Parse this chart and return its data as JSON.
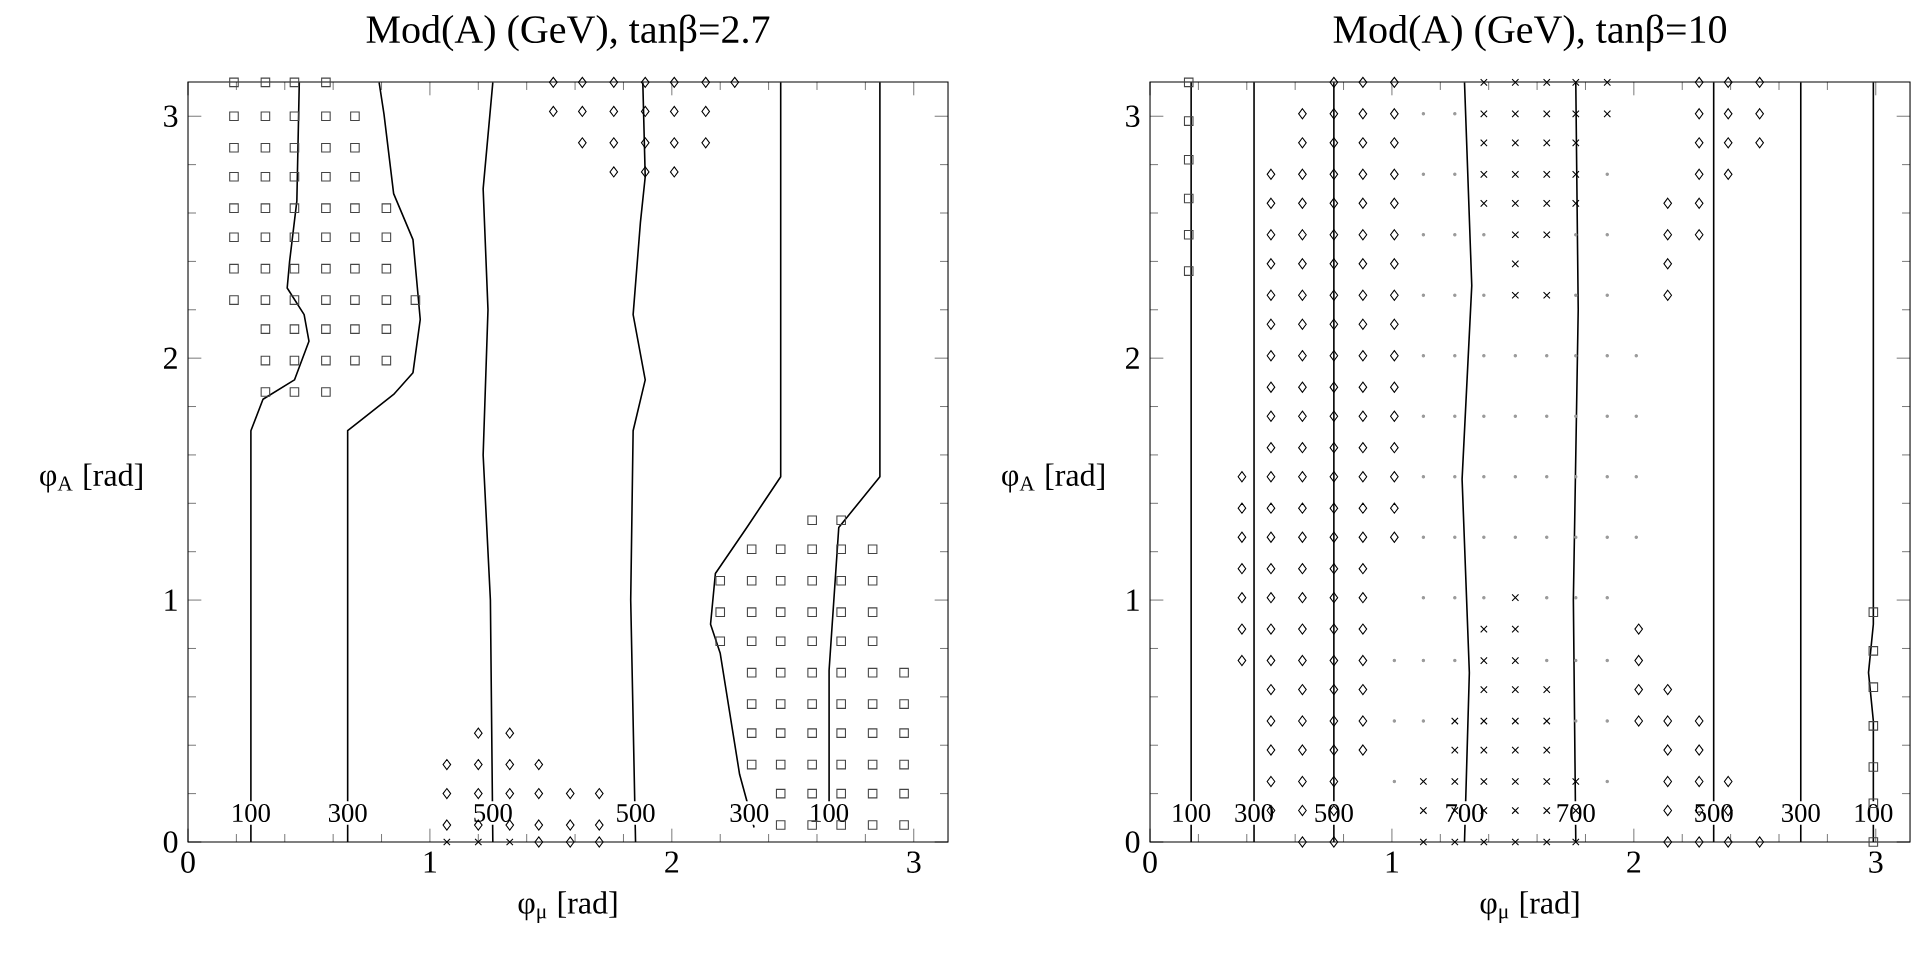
{
  "chart_data": [
    {
      "type": "scatter",
      "title": "Mod(A) (GeV), tanβ=2.7",
      "xlabel": "φ$_{μ}$ [rad]",
      "ylabel": "φ$_{A}$ [rad]",
      "xlim": [
        0,
        3.1416
      ],
      "ylim": [
        0,
        3.1416
      ],
      "xticks": [
        0,
        1,
        2,
        3
      ],
      "yticks": [
        0,
        1,
        2,
        3
      ],
      "series": [
        {
          "marker": "square",
          "color": "#444444",
          "x": [
            0.19,
            0.32,
            0.44,
            0.57,
            0.19,
            0.32,
            0.44,
            0.57,
            0.69,
            0.19,
            0.32,
            0.44,
            0.57,
            0.69,
            0.19,
            0.32,
            0.44,
            0.57,
            0.69,
            0.19,
            0.32,
            0.44,
            0.57,
            0.69,
            0.82,
            0.19,
            0.32,
            0.44,
            0.57,
            0.69,
            0.82,
            0.19,
            0.32,
            0.44,
            0.57,
            0.69,
            0.82,
            0.19,
            0.32,
            0.44,
            0.57,
            0.69,
            0.82,
            0.94,
            0.32,
            0.44,
            0.57,
            0.69,
            0.82,
            0.32,
            0.44,
            0.57,
            0.69,
            0.82,
            0.32,
            0.44,
            0.57,
            2.58,
            2.7,
            2.33,
            2.45,
            2.58,
            2.7,
            2.83,
            2.2,
            2.33,
            2.45,
            2.58,
            2.7,
            2.83,
            2.2,
            2.33,
            2.45,
            2.58,
            2.7,
            2.83,
            2.2,
            2.33,
            2.45,
            2.58,
            2.7,
            2.83,
            2.33,
            2.45,
            2.58,
            2.7,
            2.83,
            2.96,
            2.33,
            2.45,
            2.58,
            2.7,
            2.83,
            2.96,
            2.33,
            2.45,
            2.58,
            2.7,
            2.83,
            2.96,
            2.33,
            2.45,
            2.58,
            2.7,
            2.83,
            2.96,
            2.45,
            2.58,
            2.7,
            2.83,
            2.96,
            2.45,
            2.58,
            2.7,
            2.83,
            2.96
          ],
          "values": [
            3.14,
            3.14,
            3.14,
            3.14,
            3.0,
            3.0,
            3.0,
            3.0,
            3.0,
            2.87,
            2.87,
            2.87,
            2.87,
            2.87,
            2.75,
            2.75,
            2.75,
            2.75,
            2.75,
            2.62,
            2.62,
            2.62,
            2.62,
            2.62,
            2.62,
            2.5,
            2.5,
            2.5,
            2.5,
            2.5,
            2.5,
            2.37,
            2.37,
            2.37,
            2.37,
            2.37,
            2.37,
            2.24,
            2.24,
            2.24,
            2.24,
            2.24,
            2.24,
            2.24,
            2.12,
            2.12,
            2.12,
            2.12,
            2.12,
            1.99,
            1.99,
            1.99,
            1.99,
            1.99,
            1.86,
            1.86,
            1.86,
            1.33,
            1.33,
            1.21,
            1.21,
            1.21,
            1.21,
            1.21,
            1.08,
            1.08,
            1.08,
            1.08,
            1.08,
            1.08,
            0.95,
            0.95,
            0.95,
            0.95,
            0.95,
            0.95,
            0.83,
            0.83,
            0.83,
            0.83,
            0.83,
            0.83,
            0.7,
            0.7,
            0.7,
            0.7,
            0.7,
            0.7,
            0.57,
            0.57,
            0.57,
            0.57,
            0.57,
            0.57,
            0.45,
            0.45,
            0.45,
            0.45,
            0.45,
            0.45,
            0.32,
            0.32,
            0.32,
            0.32,
            0.32,
            0.32,
            0.2,
            0.2,
            0.2,
            0.2,
            0.2,
            0.07,
            0.07,
            0.07,
            0.07,
            0.07
          ]
        },
        {
          "marker": "diamond",
          "color": "#000000",
          "x": [
            1.51,
            1.63,
            1.76,
            1.89,
            2.01,
            2.14,
            2.26,
            1.51,
            1.63,
            1.76,
            1.89,
            2.01,
            2.14,
            1.63,
            1.76,
            1.89,
            2.01,
            2.14,
            1.76,
            1.89,
            2.01,
            1.2,
            1.33,
            1.07,
            1.2,
            1.33,
            1.45,
            1.07,
            1.2,
            1.33,
            1.45,
            1.58,
            1.7,
            1.07,
            1.2,
            1.33,
            1.45,
            1.58,
            1.7,
            1.45,
            1.58,
            1.7
          ],
          "values": [
            3.14,
            3.14,
            3.14,
            3.14,
            3.14,
            3.14,
            3.14,
            3.02,
            3.02,
            3.02,
            3.02,
            3.02,
            3.02,
            2.89,
            2.89,
            2.89,
            2.89,
            2.89,
            2.77,
            2.77,
            2.77,
            0.45,
            0.45,
            0.32,
            0.32,
            0.32,
            0.32,
            0.2,
            0.2,
            0.2,
            0.2,
            0.2,
            0.2,
            0.07,
            0.07,
            0.07,
            0.07,
            0.07,
            0.07,
            0.0,
            0.0,
            0.0
          ]
        },
        {
          "marker": "cross",
          "color": "#000000",
          "x": [
            1.07,
            1.2,
            1.33
          ],
          "values": [
            0.0,
            0.0,
            0.0
          ]
        },
        {
          "type": "line",
          "marker": "none",
          "color": "#000000",
          "x": [
            0.26,
            0.26,
            0.31,
            0.44,
            0.5,
            0.48,
            0.41,
            0.42,
            0.45,
            0.46
          ],
          "values": [
            0,
            1.7,
            1.83,
            1.91,
            2.07,
            2.18,
            2.29,
            2.4,
            2.65,
            3.14
          ]
        },
        {
          "type": "line",
          "marker": "none",
          "color": "#000000",
          "x": [
            0.66,
            0.66,
            0.71,
            0.85,
            0.93,
            0.96,
            0.93,
            0.85,
            0.81,
            0.79
          ],
          "values": [
            0,
            1.7,
            1.74,
            1.85,
            1.94,
            2.16,
            2.49,
            2.68,
            3.01,
            3.14
          ]
        },
        {
          "type": "line",
          "marker": "none",
          "color": "#000000",
          "x": [
            1.26,
            1.25,
            1.22,
            1.24,
            1.22,
            1.26
          ],
          "values": [
            0,
            1.0,
            1.6,
            2.2,
            2.7,
            3.14
          ]
        },
        {
          "type": "line",
          "marker": "none",
          "color": "#000000",
          "x": [
            1.85,
            1.83,
            1.84,
            1.89,
            1.84,
            1.87,
            1.89,
            1.88
          ],
          "values": [
            0,
            1.0,
            1.7,
            1.91,
            2.18,
            2.56,
            2.75,
            3.14
          ]
        },
        {
          "type": "line",
          "marker": "none",
          "color": "#000000",
          "x": [
            2.34,
            2.28,
            2.24,
            2.2,
            2.16,
            2.18,
            2.31,
            2.45,
            2.45
          ],
          "values": [
            0.06,
            0.28,
            0.53,
            0.78,
            0.9,
            1.11,
            1.3,
            1.51,
            3.14
          ]
        },
        {
          "type": "line",
          "marker": "none",
          "color": "#000000",
          "x": [
            2.65,
            2.65,
            2.69,
            2.86,
            2.86
          ],
          "values": [
            0.13,
            0.71,
            1.3,
            1.51,
            3.14
          ]
        }
      ],
      "annotations": [
        {
          "text": "100",
          "x": 0.26,
          "y": 0.12
        },
        {
          "text": "300",
          "x": 0.66,
          "y": 0.12
        },
        {
          "text": "500",
          "x": 1.26,
          "y": 0.12
        },
        {
          "text": "500",
          "x": 1.85,
          "y": 0.12
        },
        {
          "text": "300",
          "x": 2.32,
          "y": 0.12
        },
        {
          "text": "100",
          "x": 2.65,
          "y": 0.12
        }
      ]
    },
    {
      "type": "scatter",
      "title": "Mod(A) (GeV), tanβ=10",
      "xlabel": "φ$_{μ}$ [rad]",
      "ylabel": "φ$_{A}$ [rad]",
      "xlim": [
        0,
        3.1416
      ],
      "ylim": [
        0,
        3.1416
      ],
      "xticks": [
        0,
        1,
        2,
        3
      ],
      "yticks": [
        0,
        1,
        2,
        3
      ],
      "series": [
        {
          "marker": "circle",
          "color": "#999999",
          "x": [
            1.13,
            1.26,
            1.13,
            1.26,
            1.89,
            1.13,
            1.26,
            1.38,
            1.76,
            1.89,
            1.13,
            1.26,
            1.38,
            1.76,
            1.89,
            1.13,
            1.26,
            1.38,
            1.51,
            1.64,
            1.76,
            1.89,
            2.01,
            1.13,
            1.26,
            1.38,
            1.51,
            1.64,
            1.76,
            1.89,
            2.01,
            1.13,
            1.26,
            1.38,
            1.51,
            1.64,
            1.76,
            1.89,
            2.01,
            1.13,
            1.26,
            1.38,
            1.51,
            1.64,
            1.76,
            1.89,
            2.01,
            1.13,
            1.26,
            1.38,
            1.64,
            1.76,
            1.89,
            1.01,
            1.13,
            1.26,
            1.64,
            1.76,
            1.89,
            1.01,
            1.13,
            1.76,
            1.89,
            1.01,
            1.89
          ],
          "values": [
            3.01,
            3.01,
            2.76,
            2.76,
            2.76,
            2.51,
            2.51,
            2.51,
            2.51,
            2.51,
            2.26,
            2.26,
            2.26,
            2.26,
            2.26,
            2.01,
            2.01,
            2.01,
            2.01,
            2.01,
            2.01,
            2.01,
            2.01,
            1.76,
            1.76,
            1.76,
            1.76,
            1.76,
            1.76,
            1.76,
            1.76,
            1.51,
            1.51,
            1.51,
            1.51,
            1.51,
            1.51,
            1.51,
            1.51,
            1.26,
            1.26,
            1.26,
            1.26,
            1.26,
            1.26,
            1.26,
            1.26,
            1.01,
            1.01,
            1.01,
            1.01,
            1.01,
            1.01,
            0.75,
            0.75,
            0.75,
            0.75,
            0.75,
            0.75,
            0.5,
            0.5,
            0.5,
            0.5,
            0.25,
            0.25
          ]
        },
        {
          "marker": "square",
          "color": "#444444",
          "x": [
            0.16,
            0.16,
            0.16,
            0.16,
            0.16,
            0.16,
            2.99,
            2.99,
            2.99,
            2.99,
            2.99,
            2.99,
            2.99
          ],
          "values": [
            3.14,
            2.98,
            2.82,
            2.66,
            2.51,
            2.36,
            0.95,
            0.79,
            0.64,
            0.48,
            0.31,
            0.16,
            0.0
          ]
        },
        {
          "marker": "diamond",
          "color": "#000000",
          "x": [
            0.76,
            0.88,
            1.01,
            0.63,
            0.76,
            0.88,
            1.01,
            0.63,
            0.76,
            0.88,
            1.01,
            0.5,
            0.63,
            0.76,
            0.88,
            1.01,
            0.5,
            0.63,
            0.76,
            0.88,
            1.01,
            0.5,
            0.63,
            0.76,
            0.88,
            1.01,
            0.5,
            0.63,
            0.76,
            0.88,
            1.01,
            0.5,
            0.63,
            0.76,
            0.88,
            1.01,
            0.5,
            0.63,
            0.76,
            0.88,
            1.01,
            0.5,
            0.63,
            0.76,
            0.88,
            1.01,
            0.5,
            0.63,
            0.76,
            0.88,
            1.01,
            0.5,
            0.63,
            0.76,
            0.88,
            1.01,
            0.5,
            0.63,
            0.76,
            0.88,
            1.01,
            0.38,
            0.5,
            0.63,
            0.76,
            0.88,
            1.01,
            0.38,
            0.5,
            0.63,
            0.76,
            0.88,
            1.01,
            0.38,
            0.5,
            0.63,
            0.76,
            0.88,
            1.01,
            0.38,
            0.5,
            0.63,
            0.76,
            0.88,
            0.38,
            0.5,
            0.63,
            0.76,
            0.88,
            0.38,
            0.5,
            0.63,
            0.76,
            0.88,
            0.38,
            0.5,
            0.63,
            0.76,
            0.88,
            0.5,
            0.63,
            0.76,
            0.88,
            0.5,
            0.63,
            0.76,
            0.88,
            0.5,
            0.63,
            0.76,
            0.88,
            0.5,
            0.63,
            0.76,
            0.5,
            0.63,
            0.76,
            0.63,
            0.76,
            2.27,
            2.39,
            2.52,
            2.27,
            2.39,
            2.52,
            2.27,
            2.39,
            2.52,
            2.27,
            2.39,
            2.14,
            2.27,
            2.14,
            2.27,
            2.14,
            2.14,
            2.02,
            2.02,
            2.02,
            2.14,
            2.02,
            2.14,
            2.27,
            2.14,
            2.27,
            2.14,
            2.27,
            2.39,
            2.14,
            2.27,
            2.39,
            2.14,
            2.27,
            2.39,
            2.52
          ],
          "values": [
            3.14,
            3.14,
            3.14,
            3.01,
            3.01,
            3.01,
            3.01,
            2.89,
            2.89,
            2.89,
            2.89,
            2.76,
            2.76,
            2.76,
            2.76,
            2.76,
            2.64,
            2.64,
            2.64,
            2.64,
            2.64,
            2.51,
            2.51,
            2.51,
            2.51,
            2.51,
            2.39,
            2.39,
            2.39,
            2.39,
            2.39,
            2.26,
            2.26,
            2.26,
            2.26,
            2.26,
            2.14,
            2.14,
            2.14,
            2.14,
            2.14,
            2.01,
            2.01,
            2.01,
            2.01,
            2.01,
            1.88,
            1.88,
            1.88,
            1.88,
            1.88,
            1.76,
            1.76,
            1.76,
            1.76,
            1.76,
            1.63,
            1.63,
            1.63,
            1.63,
            1.63,
            1.51,
            1.51,
            1.51,
            1.51,
            1.51,
            1.51,
            1.38,
            1.38,
            1.38,
            1.38,
            1.38,
            1.38,
            1.26,
            1.26,
            1.26,
            1.26,
            1.26,
            1.26,
            1.13,
            1.13,
            1.13,
            1.13,
            1.13,
            1.01,
            1.01,
            1.01,
            1.01,
            1.01,
            0.88,
            0.88,
            0.88,
            0.88,
            0.88,
            0.75,
            0.75,
            0.75,
            0.75,
            0.75,
            0.63,
            0.63,
            0.63,
            0.63,
            0.5,
            0.5,
            0.5,
            0.5,
            0.38,
            0.38,
            0.38,
            0.38,
            0.25,
            0.25,
            0.25,
            0.13,
            0.13,
            0.13,
            0.0,
            0.0,
            3.14,
            3.14,
            3.14,
            3.01,
            3.01,
            3.01,
            2.89,
            2.89,
            2.89,
            2.76,
            2.76,
            2.64,
            2.64,
            2.51,
            2.51,
            2.39,
            2.26,
            0.88,
            0.75,
            0.63,
            0.63,
            0.5,
            0.5,
            0.5,
            0.38,
            0.38,
            0.25,
            0.25,
            0.25,
            0.13,
            0.13,
            0.13,
            0.0,
            0.0,
            0.0,
            0.0
          ]
        },
        {
          "marker": "cross",
          "color": "#000000",
          "x": [
            1.38,
            1.51,
            1.64,
            1.76,
            1.89,
            1.38,
            1.51,
            1.64,
            1.76,
            1.89,
            1.38,
            1.51,
            1.64,
            1.76,
            1.38,
            1.51,
            1.64,
            1.76,
            1.38,
            1.51,
            1.64,
            1.76,
            1.51,
            1.64,
            1.51,
            1.51,
            1.64,
            1.51,
            1.38,
            1.51,
            1.38,
            1.51,
            1.38,
            1.51,
            1.64,
            1.26,
            1.38,
            1.51,
            1.64,
            1.26,
            1.38,
            1.51,
            1.64,
            1.13,
            1.26,
            1.38,
            1.51,
            1.64,
            1.76,
            1.13,
            1.26,
            1.38,
            1.51,
            1.64,
            1.76,
            1.13,
            1.26,
            1.38,
            1.51,
            1.64,
            1.76
          ],
          "values": [
            3.14,
            3.14,
            3.14,
            3.14,
            3.14,
            3.01,
            3.01,
            3.01,
            3.01,
            3.01,
            2.89,
            2.89,
            2.89,
            2.89,
            2.76,
            2.76,
            2.76,
            2.76,
            2.64,
            2.64,
            2.64,
            2.64,
            2.51,
            2.51,
            2.39,
            2.26,
            2.26,
            1.01,
            0.88,
            0.88,
            0.75,
            0.75,
            0.63,
            0.63,
            0.63,
            0.5,
            0.5,
            0.5,
            0.5,
            0.38,
            0.38,
            0.38,
            0.38,
            0.25,
            0.25,
            0.25,
            0.25,
            0.25,
            0.25,
            0.13,
            0.13,
            0.13,
            0.13,
            0.13,
            0.13,
            0.0,
            0.0,
            0.0,
            0.0,
            0.0,
            0.0
          ]
        },
        {
          "type": "line",
          "marker": "none",
          "color": "#000000",
          "x": [
            0.17,
            0.17
          ],
          "values": [
            0,
            3.14
          ]
        },
        {
          "type": "line",
          "marker": "none",
          "color": "#000000",
          "x": [
            0.43,
            0.43
          ],
          "values": [
            0,
            3.14
          ]
        },
        {
          "type": "line",
          "marker": "none",
          "color": "#000000",
          "x": [
            0.76,
            0.76
          ],
          "values": [
            0,
            3.14
          ]
        },
        {
          "type": "line",
          "marker": "none",
          "color": "#000000",
          "x": [
            1.3,
            1.32,
            1.29,
            1.33,
            1.3
          ],
          "values": [
            0,
            0.7,
            1.5,
            2.3,
            3.14
          ]
        },
        {
          "type": "line",
          "marker": "none",
          "color": "#000000",
          "x": [
            1.76,
            1.75,
            1.77,
            1.76
          ],
          "values": [
            0,
            1.0,
            2.2,
            3.14
          ]
        },
        {
          "type": "line",
          "marker": "none",
          "color": "#000000",
          "x": [
            2.33,
            2.33
          ],
          "values": [
            0,
            3.14
          ]
        },
        {
          "type": "line",
          "marker": "none",
          "color": "#000000",
          "x": [
            2.69,
            2.69
          ],
          "values": [
            0,
            3.14
          ]
        },
        {
          "type": "line",
          "marker": "none",
          "color": "#000000",
          "x": [
            2.99,
            2.99,
            2.97,
            2.99,
            2.99
          ],
          "values": [
            0,
            0.5,
            0.7,
            0.9,
            3.14
          ]
        }
      ],
      "annotations": [
        {
          "text": "100",
          "x": 0.17,
          "y": 0.12
        },
        {
          "text": "300",
          "x": 0.43,
          "y": 0.12
        },
        {
          "text": "500",
          "x": 0.76,
          "y": 0.12
        },
        {
          "text": "700",
          "x": 1.3,
          "y": 0.12
        },
        {
          "text": "700",
          "x": 1.76,
          "y": 0.12
        },
        {
          "text": "500",
          "x": 2.33,
          "y": 0.12
        },
        {
          "text": "300",
          "x": 2.69,
          "y": 0.12
        },
        {
          "text": "100",
          "x": 2.99,
          "y": 0.12
        }
      ]
    }
  ]
}
